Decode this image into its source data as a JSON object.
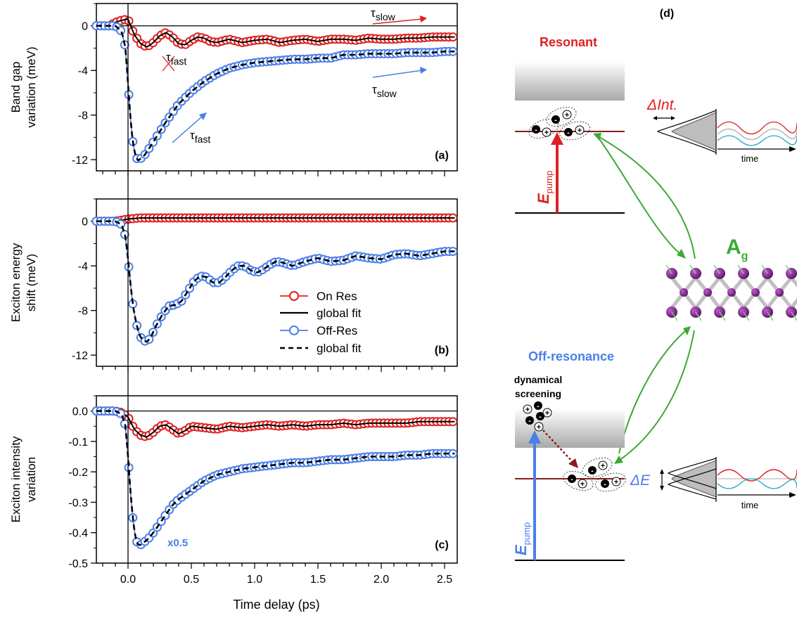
{
  "figure": {
    "xlabel": "Time delay (ps)",
    "xticks": [
      "0.0",
      "0.5",
      "1.0",
      "1.5",
      "2.0",
      "2.5"
    ],
    "legend": {
      "on_res": "On Res",
      "on_fit": "global fit",
      "off_res": "Off-Res",
      "off_fit": "global fit"
    }
  },
  "chart_data": [
    {
      "type": "line",
      "panel": "(a)",
      "ylabel": [
        "Band gap",
        "variation (meV)"
      ],
      "xlim": [
        -0.25,
        2.6
      ],
      "ylim": [
        -13,
        2
      ],
      "yticks": [
        "0",
        "-4",
        "-8",
        "-12"
      ],
      "annotations": {
        "tau_slow_red": "τ",
        "tau_slow_red_sub": "slow",
        "tau_fast_red": "τ",
        "tau_fast_red_sub": "fast",
        "tau_slow_blue": "τ",
        "tau_slow_blue_sub": "slow",
        "tau_fast_blue": "τ",
        "tau_fast_blue_sub": "fast"
      },
      "series": [
        {
          "name": "On Res",
          "color": "#e02020",
          "x": [
            -0.25,
            -0.2,
            -0.15,
            -0.1,
            -0.05,
            0,
            0.05,
            0.1,
            0.15,
            0.2,
            0.25,
            0.3,
            0.35,
            0.4,
            0.45,
            0.5,
            0.55,
            0.6,
            0.65,
            0.7,
            0.8,
            0.9,
            1.0,
            1.1,
            1.2,
            1.3,
            1.4,
            1.5,
            1.6,
            1.7,
            1.8,
            1.9,
            2.0,
            2.1,
            2.2,
            2.3,
            2.4,
            2.5,
            2.58
          ],
          "y": [
            0,
            0,
            0,
            0.3,
            0.5,
            0.6,
            -0.8,
            -1.6,
            -1.9,
            -1.5,
            -0.9,
            -0.6,
            -1.0,
            -1.6,
            -1.7,
            -1.3,
            -1.0,
            -1.1,
            -1.4,
            -1.5,
            -1.2,
            -1.5,
            -1.3,
            -1.2,
            -1.5,
            -1.3,
            -1.2,
            -1.4,
            -1.2,
            -1.2,
            -1.3,
            -1.1,
            -1.2,
            -1.2,
            -1.1,
            -1.1,
            -1.0,
            -1.0,
            -1.0
          ]
        },
        {
          "name": "Off-Res",
          "color": "#4a7fe8",
          "x": [
            -0.25,
            -0.2,
            -0.15,
            -0.1,
            -0.05,
            -0.02,
            0,
            0.02,
            0.04,
            0.06,
            0.08,
            0.1,
            0.13,
            0.16,
            0.2,
            0.25,
            0.3,
            0.35,
            0.4,
            0.5,
            0.6,
            0.7,
            0.8,
            0.9,
            1.0,
            1.1,
            1.2,
            1.3,
            1.4,
            1.5,
            1.6,
            1.7,
            1.8,
            1.9,
            2.0,
            2.1,
            2.2,
            2.3,
            2.4,
            2.5,
            2.58
          ],
          "y": [
            0,
            0,
            0,
            0,
            -0.5,
            -2,
            -5.2,
            -8.4,
            -10.6,
            -11.7,
            -12.1,
            -11.9,
            -11.6,
            -11.1,
            -10.4,
            -9.5,
            -8.6,
            -7.8,
            -7.0,
            -5.9,
            -5.0,
            -4.3,
            -3.8,
            -3.5,
            -3.3,
            -3.2,
            -3.1,
            -3.0,
            -3.0,
            -2.9,
            -2.9,
            -2.6,
            -2.6,
            -2.5,
            -2.5,
            -2.5,
            -2.4,
            -2.4,
            -2.4,
            -2.3,
            -2.3
          ]
        }
      ]
    },
    {
      "type": "line",
      "panel": "(b)",
      "ylabel": [
        "Exciton energy",
        "shift (meV)"
      ],
      "xlim": [
        -0.25,
        2.6
      ],
      "ylim": [
        -13,
        2
      ],
      "yticks": [
        "0",
        "-4",
        "-8",
        "-12"
      ],
      "series": [
        {
          "name": "On Res",
          "color": "#e02020",
          "x": [
            -0.25,
            -0.2,
            -0.15,
            -0.1,
            -0.05,
            0,
            0.1,
            0.2,
            0.4,
            0.6,
            0.8,
            1.0,
            1.2,
            1.4,
            1.6,
            1.8,
            2.0,
            2.2,
            2.4,
            2.58
          ],
          "y": [
            0,
            0,
            0,
            0,
            0.1,
            0.2,
            0.3,
            0.3,
            0.3,
            0.3,
            0.3,
            0.3,
            0.3,
            0.3,
            0.3,
            0.3,
            0.3,
            0.3,
            0.3,
            0.3
          ]
        },
        {
          "name": "Off-Res",
          "color": "#4a7fe8",
          "x": [
            -0.25,
            -0.2,
            -0.15,
            -0.1,
            -0.05,
            -0.02,
            0,
            0.02,
            0.04,
            0.06,
            0.08,
            0.1,
            0.12,
            0.15,
            0.18,
            0.22,
            0.27,
            0.32,
            0.37,
            0.42,
            0.47,
            0.52,
            0.57,
            0.62,
            0.67,
            0.72,
            0.77,
            0.82,
            0.87,
            0.92,
            0.97,
            1.02,
            1.07,
            1.12,
            1.17,
            1.22,
            1.3,
            1.4,
            1.5,
            1.6,
            1.7,
            1.8,
            1.9,
            2.0,
            2.1,
            2.2,
            2.3,
            2.4,
            2.5,
            2.58
          ],
          "y": [
            0,
            0,
            0,
            0,
            -0.3,
            -1.4,
            -3.4,
            -5.7,
            -7.6,
            -8.9,
            -9.8,
            -10.4,
            -10.7,
            -10.8,
            -10.4,
            -9.4,
            -8.4,
            -7.6,
            -7.5,
            -7.2,
            -6.3,
            -5.4,
            -4.9,
            -5.0,
            -5.5,
            -5.5,
            -5.0,
            -4.4,
            -4.0,
            -4.0,
            -4.4,
            -4.6,
            -4.3,
            -3.9,
            -3.6,
            -3.7,
            -4.0,
            -3.6,
            -3.3,
            -3.6,
            -3.5,
            -3.1,
            -3.3,
            -3.4,
            -3.0,
            -2.9,
            -3.1,
            -2.9,
            -2.7,
            -2.7
          ]
        }
      ]
    },
    {
      "type": "line",
      "panel": "(c)",
      "ylabel": [
        "Exciton intensity",
        "variation"
      ],
      "xlim": [
        -0.25,
        2.6
      ],
      "ylim": [
        -0.5,
        0.05
      ],
      "yticks": [
        "0.0",
        "-0.1",
        "-0.2",
        "-0.3",
        "-0.4",
        "-0.5"
      ],
      "annotations": {
        "scale": "x0.5"
      },
      "series": [
        {
          "name": "On Res",
          "color": "#e02020",
          "x": [
            -0.25,
            -0.2,
            -0.15,
            -0.1,
            -0.05,
            0,
            0.05,
            0.1,
            0.15,
            0.2,
            0.25,
            0.3,
            0.35,
            0.4,
            0.45,
            0.5,
            0.6,
            0.7,
            0.8,
            0.9,
            1.0,
            1.1,
            1.2,
            1.3,
            1.4,
            1.5,
            1.6,
            1.7,
            1.8,
            1.9,
            2.0,
            2.1,
            2.2,
            2.3,
            2.4,
            2.5,
            2.58
          ],
          "y": [
            0,
            0,
            0,
            0,
            -0.005,
            -0.02,
            -0.06,
            -0.08,
            -0.085,
            -0.07,
            -0.05,
            -0.045,
            -0.06,
            -0.075,
            -0.065,
            -0.05,
            -0.055,
            -0.06,
            -0.05,
            -0.055,
            -0.05,
            -0.045,
            -0.05,
            -0.045,
            -0.05,
            -0.045,
            -0.045,
            -0.04,
            -0.045,
            -0.04,
            -0.04,
            -0.04,
            -0.04,
            -0.035,
            -0.035,
            -0.035,
            -0.035
          ]
        },
        {
          "name": "Off-Res",
          "color": "#4a7fe8",
          "x": [
            -0.25,
            -0.2,
            -0.15,
            -0.1,
            -0.05,
            -0.02,
            0,
            0.02,
            0.04,
            0.06,
            0.08,
            0.1,
            0.13,
            0.16,
            0.2,
            0.25,
            0.3,
            0.35,
            0.4,
            0.5,
            0.6,
            0.7,
            0.8,
            0.9,
            1.0,
            1.1,
            1.2,
            1.3,
            1.4,
            1.5,
            1.6,
            1.7,
            1.8,
            1.9,
            2.0,
            2.1,
            2.2,
            2.3,
            2.4,
            2.5,
            2.58
          ],
          "y": [
            0,
            0,
            0,
            0,
            -0.01,
            -0.05,
            -0.15,
            -0.27,
            -0.36,
            -0.42,
            -0.44,
            -0.44,
            -0.43,
            -0.42,
            -0.4,
            -0.37,
            -0.34,
            -0.31,
            -0.29,
            -0.26,
            -0.23,
            -0.21,
            -0.2,
            -0.19,
            -0.185,
            -0.18,
            -0.175,
            -0.17,
            -0.17,
            -0.165,
            -0.16,
            -0.16,
            -0.155,
            -0.15,
            -0.15,
            -0.15,
            -0.145,
            -0.145,
            -0.14,
            -0.14,
            -0.14
          ]
        }
      ]
    }
  ],
  "diagram": {
    "panel": "(d)",
    "resonant": "Resonant",
    "off_resonance": "Off-resonance",
    "e_pump": "E",
    "e_pump_sub": "pump",
    "delta_int": "ΔInt.",
    "delta_e": "ΔE",
    "time": "time",
    "ag": "A",
    "ag_sub": "g",
    "dynamical": "dynamical",
    "screening": "screening",
    "colors": {
      "red": "#e02020",
      "blue": "#4a7fe8",
      "green": "#3aaa35",
      "darkred": "#8b1a1a",
      "cyan": "#1aa3c4",
      "purple": "#8a2f8f"
    }
  }
}
